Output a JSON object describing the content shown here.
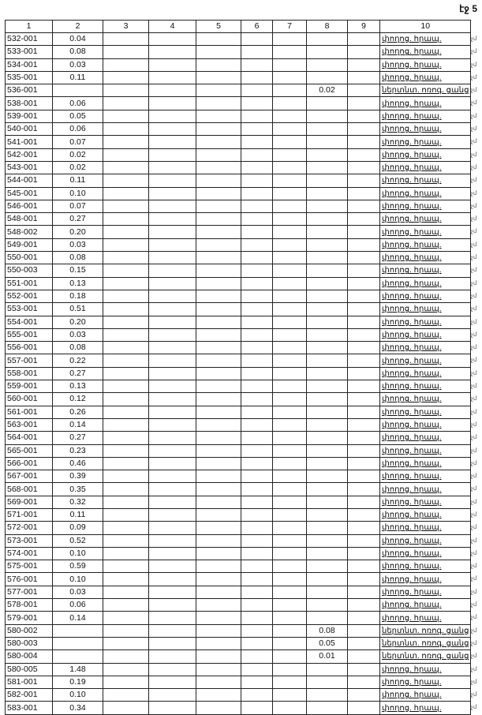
{
  "page_label": "էջ 5",
  "columns": [
    "1",
    "2",
    "3",
    "4",
    "5",
    "6",
    "7",
    "8",
    "9",
    "10"
  ],
  "row_note": "չմ",
  "rows": [
    [
      "532-001",
      "0.04",
      "",
      "փողոց. հրապ."
    ],
    [
      "533-001",
      "0.08",
      "",
      "փողոց. հրապ."
    ],
    [
      "534-001",
      "0.03",
      "",
      "փողոց. հրապ."
    ],
    [
      "535-001",
      "0.11",
      "",
      "փողոց. հրապ."
    ],
    [
      "536-001",
      "",
      "0.02",
      "ներտնտ. ոռոգ. ցանց"
    ],
    [
      "538-001",
      "0.06",
      "",
      "փողոց. հրապ."
    ],
    [
      "539-001",
      "0.05",
      "",
      "փողոց. հրապ."
    ],
    [
      "540-001",
      "0.06",
      "",
      "փողոց. հրապ."
    ],
    [
      "541-001",
      "0.07",
      "",
      "փողոց. հրապ."
    ],
    [
      "542-001",
      "0.02",
      "",
      "փողոց. հրապ."
    ],
    [
      "543-001",
      "0.02",
      "",
      "փողոց. հրապ."
    ],
    [
      "544-001",
      "0.11",
      "",
      "փողոց. հրապ."
    ],
    [
      "545-001",
      "0.10",
      "",
      "փողոց. հրապ."
    ],
    [
      "546-001",
      "0.07",
      "",
      "փողոց. հրապ."
    ],
    [
      "548-001",
      "0.27",
      "",
      "փողոց. հրապ."
    ],
    [
      "548-002",
      "0.20",
      "",
      "փողոց. հրապ."
    ],
    [
      "549-001",
      "0.03",
      "",
      "փողոց. հրապ."
    ],
    [
      "550-001",
      "0.08",
      "",
      "փողոց. հրապ."
    ],
    [
      "550-003",
      "0.15",
      "",
      "փողոց. հրապ."
    ],
    [
      "551-001",
      "0.13",
      "",
      "փողոց. հրապ."
    ],
    [
      "552-001",
      "0.18",
      "",
      "փողոց. հրապ."
    ],
    [
      "553-001",
      "0.51",
      "",
      "փողոց. հրապ."
    ],
    [
      "554-001",
      "0.20",
      "",
      "փողոց. հրապ."
    ],
    [
      "555-001",
      "0.03",
      "",
      "փողոց. հրապ."
    ],
    [
      "556-001",
      "0.08",
      "",
      "փողոց. հրապ."
    ],
    [
      "557-001",
      "0.22",
      "",
      "փողոց. հրապ."
    ],
    [
      "558-001",
      "0.27",
      "",
      "փողոց. հրապ."
    ],
    [
      "559-001",
      "0.13",
      "",
      "փողոց. հրապ."
    ],
    [
      "560-001",
      "0.12",
      "",
      "փողոց. հրապ."
    ],
    [
      "561-001",
      "0.26",
      "",
      "փողոց. հրապ."
    ],
    [
      "563-001",
      "0.14",
      "",
      "փողոց. հրապ."
    ],
    [
      "564-001",
      "0.27",
      "",
      "փողոց. հրապ."
    ],
    [
      "565-001",
      "0.23",
      "",
      "փողոց. հրապ."
    ],
    [
      "566-001",
      "0.46",
      "",
      "փողոց. հրապ."
    ],
    [
      "567-001",
      "0.39",
      "",
      "փողոց. հրապ."
    ],
    [
      "568-001",
      "0.35",
      "",
      "փողոց. հրապ."
    ],
    [
      "569-001",
      "0.32",
      "",
      "փողոց. հրապ."
    ],
    [
      "571-001",
      "0.11",
      "",
      "փողոց. հրապ."
    ],
    [
      "572-001",
      "0.09",
      "",
      "փողոց. հրապ."
    ],
    [
      "573-001",
      "0.52",
      "",
      "փողոց. հրապ."
    ],
    [
      "574-001",
      "0.10",
      "",
      "փողոց. հրապ."
    ],
    [
      "575-001",
      "0.59",
      "",
      "փողոց. հրապ."
    ],
    [
      "576-001",
      "0.10",
      "",
      "փողոց. հրապ."
    ],
    [
      "577-001",
      "0.03",
      "",
      "փողոց. հրապ."
    ],
    [
      "578-001",
      "0.06",
      "",
      "փողոց. հրապ."
    ],
    [
      "579-001",
      "0.14",
      "",
      "փողոց. հրապ."
    ],
    [
      "580-002",
      "",
      "0.08",
      "ներտնտ. ոռոգ. ցանց"
    ],
    [
      "580-003",
      "",
      "0.05",
      "ներտնտ. ոռոգ. ցանց"
    ],
    [
      "580-004",
      "",
      "0.01",
      "ներտնտ. ոռոգ. ցանց"
    ],
    [
      "580-005",
      "1.48",
      "",
      "փողոց. հրապ."
    ],
    [
      "581-001",
      "0.19",
      "",
      "փողոց. հրապ."
    ],
    [
      "582-001",
      "0.10",
      "",
      "փողոց. հրապ."
    ],
    [
      "583-001",
      "0.34",
      "",
      "փողոց. հրապ."
    ]
  ]
}
